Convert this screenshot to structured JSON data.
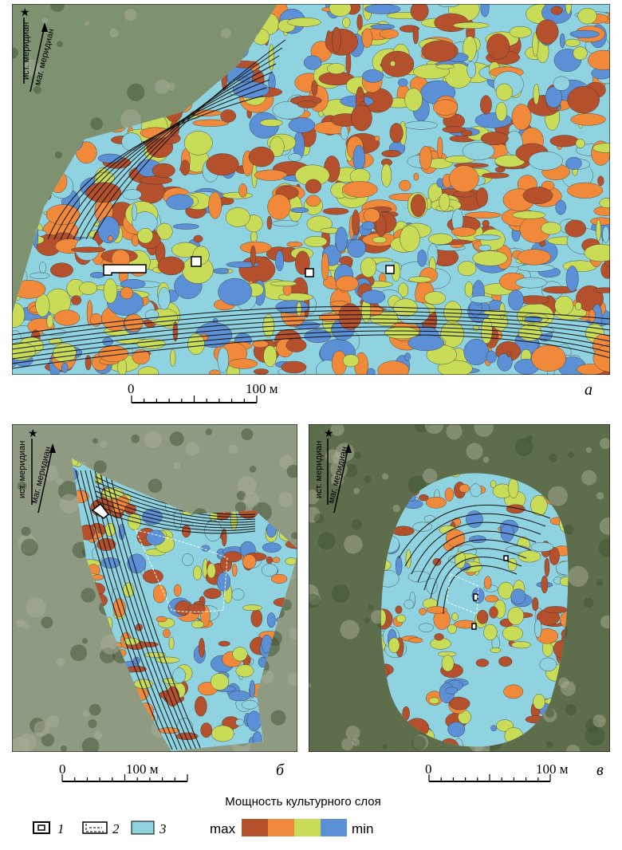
{
  "panels": [
    {
      "letter": "а",
      "true_meridian": "ист. меридиан",
      "magnetic_meridian": "маг. меридиан",
      "scale": {
        "start": "0",
        "end": "100 м"
      }
    },
    {
      "letter": "б",
      "true_meridian": "ист. меридиан",
      "magnetic_meridian": "маг. меридиан",
      "scale": {
        "start": "0",
        "end": "100 м"
      }
    },
    {
      "letter": "в",
      "true_meridian": "ист. меридиан",
      "magnetic_meridian": "маг. меридиан",
      "scale": {
        "start": "0",
        "end": "100 м"
      }
    }
  ],
  "legend": {
    "title": "Мощность культурного слоя",
    "max": "max",
    "min": "min",
    "items": [
      "1",
      "2",
      "3"
    ]
  }
}
